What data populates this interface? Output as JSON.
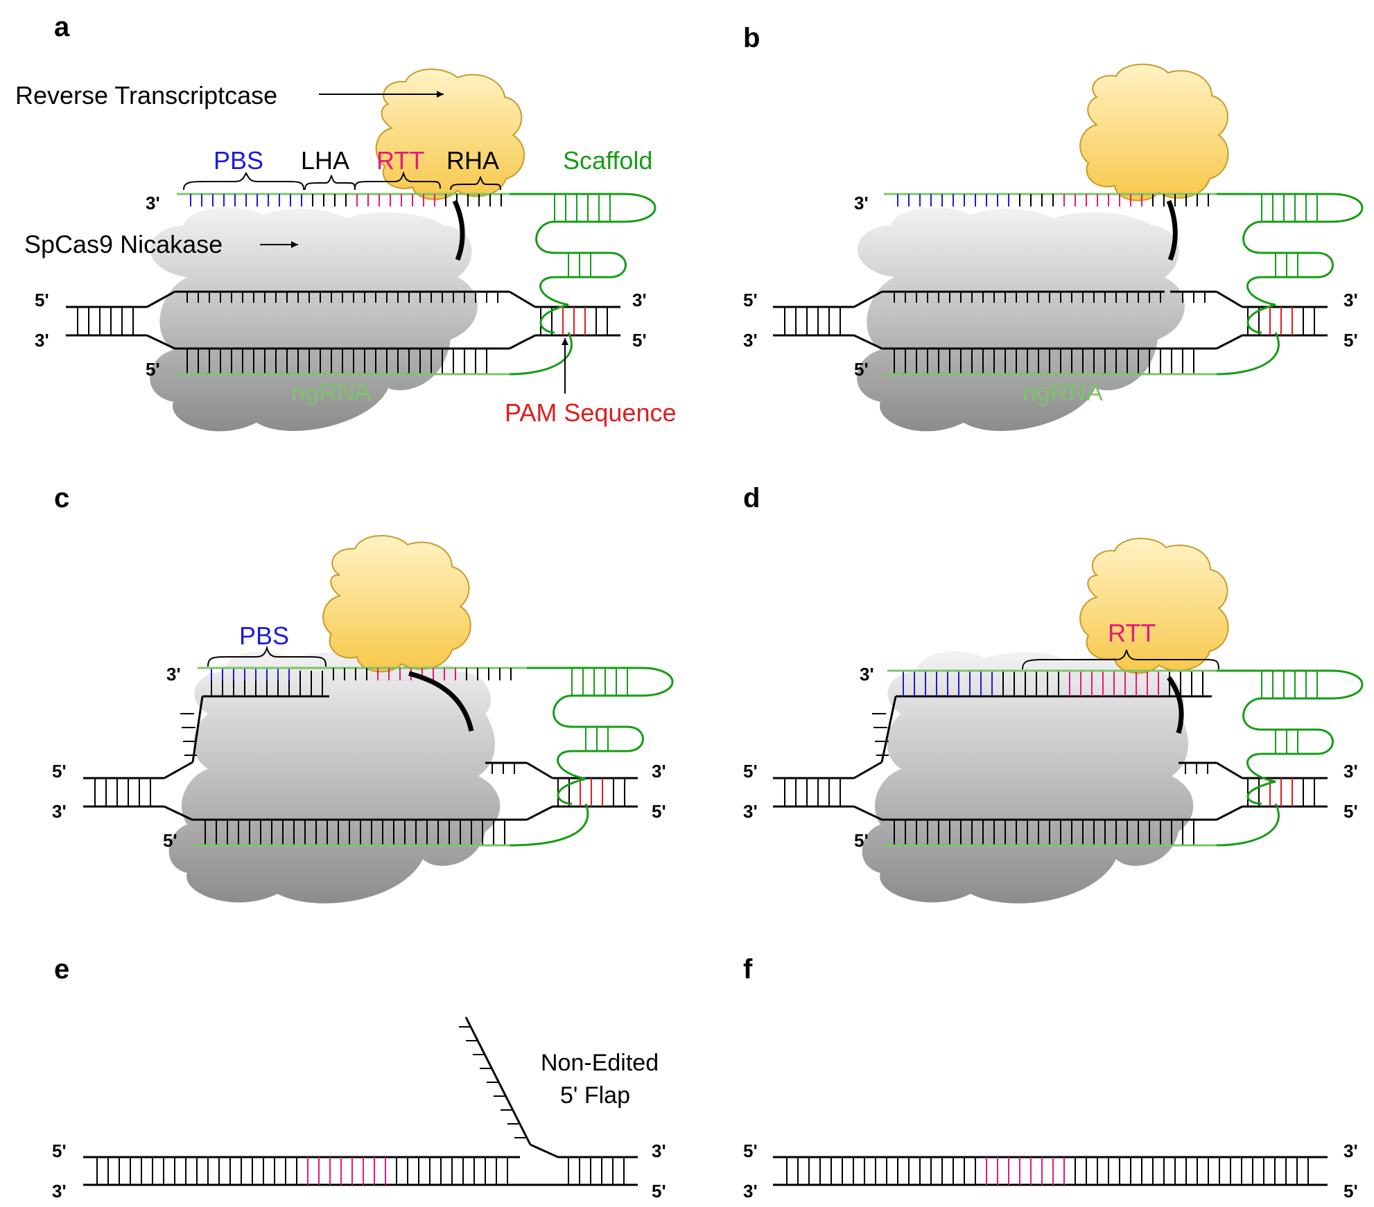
{
  "panels": {
    "a": {
      "letter": "a",
      "labels": {
        "reverse_transcriptase": "Reverse Transcriptcase",
        "spcas9": "SpCas9 Nicakase",
        "pbs": "PBS",
        "lha": "LHA",
        "rtt": "RTT",
        "rha": "RHA",
        "scaffold": "Scaffold",
        "ngrna": "ngRNA",
        "pam": "PAM Sequence"
      },
      "ends": {
        "pegrna_3": "3'",
        "top_left": "5'",
        "bottom_left": "3'",
        "top_right": "3'",
        "bottom_right": "5'",
        "ngrna_5": "5'"
      }
    },
    "b": {
      "letter": "b",
      "labels": {
        "ngrna": "ngRNA"
      },
      "ends": {
        "pegrna_3": "3'",
        "top_left": "5'",
        "bottom_left": "3'",
        "top_right": "3'",
        "bottom_right": "5'",
        "ngrna_5": "5'"
      }
    },
    "c": {
      "letter": "c",
      "labels": {
        "pbs": "PBS"
      },
      "ends": {
        "pegrna_3": "3'",
        "top_left": "5'",
        "bottom_left": "3'",
        "top_right": "3'",
        "bottom_right": "5'",
        "ngrna_5": "5'"
      }
    },
    "d": {
      "letter": "d",
      "labels": {
        "rtt": "RTT"
      },
      "ends": {
        "pegrna_3": "3'",
        "top_left": "5'",
        "bottom_left": "3'",
        "top_right": "3'",
        "bottom_right": "5'",
        "ngrna_5": "5'"
      }
    },
    "e": {
      "letter": "e",
      "labels": {
        "flap_line1": "Non-Edited",
        "flap_line2": "5' Flap"
      },
      "ends": {
        "top_left": "5'",
        "bottom_left": "3'",
        "top_right": "3'",
        "bottom_right": "5'"
      }
    },
    "f": {
      "letter": "f",
      "ends": {
        "top_left": "5'",
        "bottom_left": "3'",
        "top_right": "3'",
        "bottom_right": "5'"
      }
    }
  },
  "colors": {
    "pbs": "#1a1adb",
    "rtt": "#e8177a",
    "pam": "#e01b1b",
    "scaffold": "#169c16",
    "ngrna": "#7cc46a",
    "dna": "#000000",
    "rt_fill": "#fbd36a",
    "cas9_fill": "#c9c9c9"
  }
}
